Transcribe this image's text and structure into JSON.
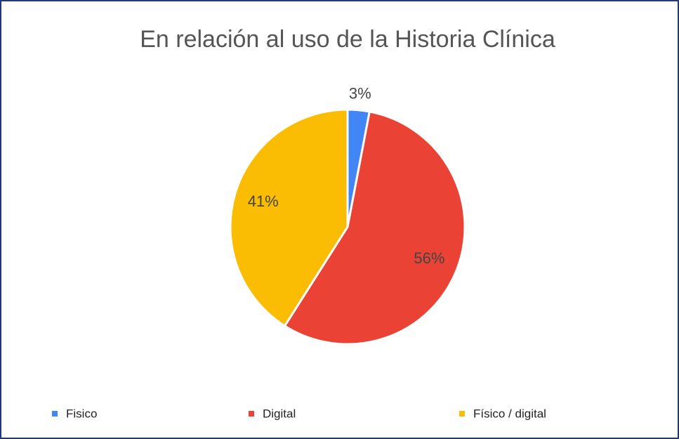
{
  "chart_data": {
    "type": "pie",
    "title": "En relación al uso de la Historia Clínica",
    "categories": [
      "Fisico",
      "Digital",
      "Físico / digital"
    ],
    "values": [
      3,
      56,
      41
    ],
    "value_labels": [
      "3%",
      "56%",
      "41%"
    ],
    "colors": [
      "#4285f4",
      "#ea4335",
      "#fbbc04"
    ],
    "legend": "bottom"
  }
}
